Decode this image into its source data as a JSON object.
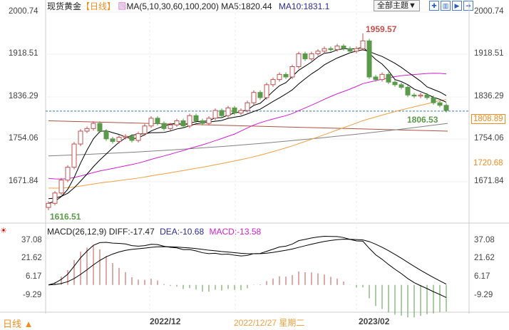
{
  "header": {
    "instrument": "现货黄金",
    "period": "【日线】",
    "ma_label": "MA(5,10,30,60,100,200)",
    "ma5": "MA5:1820.44",
    "ma10": "MA10:1831.1",
    "theme_button": "全部主题▼"
  },
  "toolbar_icons": [
    "crosshair-icon",
    "layout-icon",
    "play-icon",
    "export-icon"
  ],
  "price_axis": {
    "left": [
      "2000.74",
      "1918.51",
      "1836.29",
      "1754.06",
      "1671.84"
    ],
    "right": [
      "2000.74",
      "1918.51",
      "1836.29",
      "1754.06",
      "1671.84"
    ],
    "current_price": "1808.89",
    "marker_price": "1720.68"
  },
  "annotations": {
    "high": "1959.57",
    "low": "1616.51",
    "last_low": "1806.53"
  },
  "macd": {
    "label": "MACD(26,12,9)",
    "diff": "DIFF:-17.47",
    "dea": "DEA:-10.68",
    "macd": "MACD:-13.58",
    "axis": [
      "37.08",
      "21.62",
      "6.17",
      "-9.29"
    ]
  },
  "bottom": {
    "period_button": "日线 ▲",
    "dates": [
      "2022/12",
      "2023/02"
    ],
    "cursor_date": "2022/12/27 星期二"
  },
  "colors": {
    "up": "#c0504d",
    "down": "#5a9a4a",
    "ma5": "#000000",
    "ma10": "#000000",
    "ma30": "#d020d0",
    "ma60": "#f0a040",
    "ma100": "#b05040",
    "ma200": "#808080",
    "accent": "#f08c1e"
  },
  "chart_data": {
    "type": "candlestick",
    "price_range": [
      1600,
      2010
    ],
    "closes": [
      1630,
      1650,
      1675,
      1700,
      1745,
      1770,
      1775,
      1785,
      1770,
      1755,
      1750,
      1758,
      1760,
      1752,
      1765,
      1780,
      1795,
      1785,
      1775,
      1782,
      1790,
      1780,
      1800,
      1790,
      1785,
      1795,
      1810,
      1800,
      1815,
      1805,
      1810,
      1825,
      1845,
      1835,
      1860,
      1870,
      1880,
      1875,
      1895,
      1920,
      1910,
      1920,
      1925,
      1930,
      1928,
      1935,
      1930,
      1925,
      1930,
      1945,
      1875,
      1870,
      1880,
      1865,
      1860,
      1855,
      1840,
      1838,
      1840,
      1835,
      1825,
      1820,
      1810
    ],
    "first_open": 1622,
    "ma100": [
      1790,
      1770
    ],
    "ma200": [
      1722,
      1785
    ],
    "macd_range": [
      -20,
      42
    ]
  }
}
